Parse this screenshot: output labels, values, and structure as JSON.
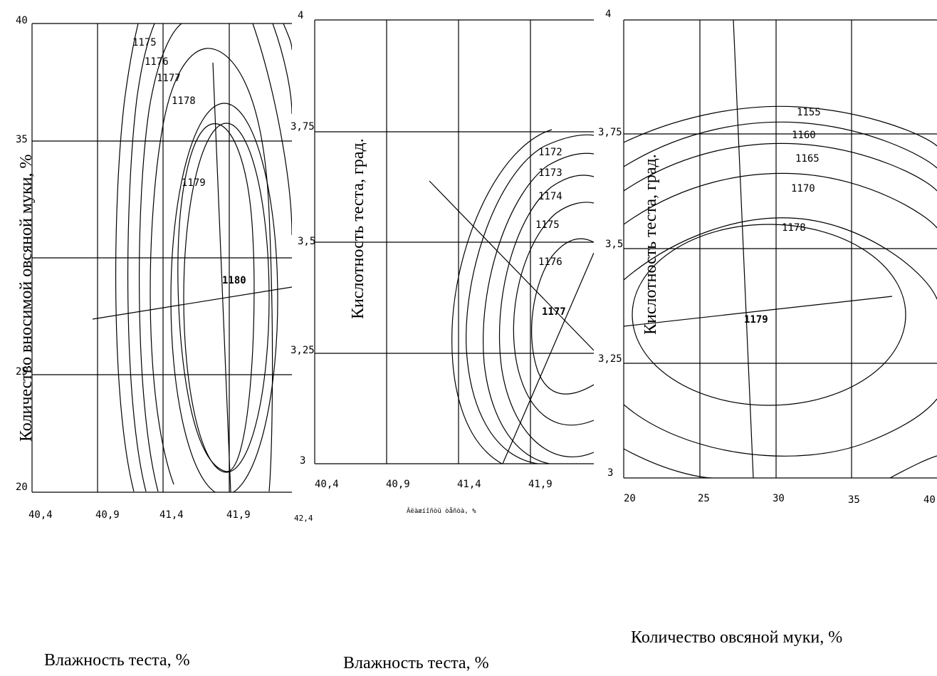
{
  "chart_data": [
    {
      "type": "contour",
      "x_label_printed": "Влажность теста, %",
      "y_label_printed": "Количество вносимой овсяной муки, %",
      "x_ticks": [
        "40,4",
        "40,9",
        "41,4",
        "41,9",
        "42,4"
      ],
      "x_ticks_printed": [
        "40,4",
        "40,9",
        "41,4",
        "41,9",
        "42,4"
      ],
      "x_last_tick_printed": "42,4",
      "y_ticks": [
        "20",
        "40"
      ],
      "y_ticks_printed": [
        "20",
        "40"
      ],
      "y_overlaid_tick_printed": [
        "25",
        "35"
      ],
      "xlim": [
        40.4,
        42.2
      ],
      "ylim": [
        20,
        40
      ],
      "contour_levels": [
        1175,
        1176,
        1177,
        1178,
        1179,
        1180
      ],
      "optimum": {
        "x": 41.85,
        "y": 30,
        "value": 1180
      },
      "grid": true
    },
    {
      "type": "contour",
      "x_label_printed": "Влажность теста, %",
      "y_label_printed": "Кислотность теста, град.",
      "x_axis_garbled_printed": "Âëàæíîñòü òåñòà, %",
      "x_ticks": [
        "40,4",
        "40,9",
        "41,4",
        "41,9"
      ],
      "y_ticks": [
        "3",
        "3,25",
        "3,5",
        "3,75",
        "4"
      ],
      "xlim": [
        40.4,
        42.3
      ],
      "ylim": [
        3,
        4
      ],
      "contour_levels": [
        1172,
        1173,
        1174,
        1175,
        1176,
        1177
      ],
      "optimum": {
        "x": 42.3,
        "y": 3.3,
        "value": 1177
      },
      "grid": true
    },
    {
      "type": "contour",
      "x_label_printed": "Количество овсяной муки, %",
      "y_label_printed": "Кислотность теста, град.",
      "x_ticks": [
        "20",
        "25",
        "30",
        "35",
        "40"
      ],
      "y_ticks": [
        "3",
        "3,25",
        "3,5",
        "3,75",
        "4"
      ],
      "xlim": [
        20,
        40
      ],
      "ylim": [
        3,
        4
      ],
      "contour_levels": [
        1155,
        1160,
        1165,
        1170,
        1178,
        1179
      ],
      "optimum": {
        "x": 29,
        "y": 3.35,
        "value": 1179
      },
      "grid": true
    }
  ]
}
